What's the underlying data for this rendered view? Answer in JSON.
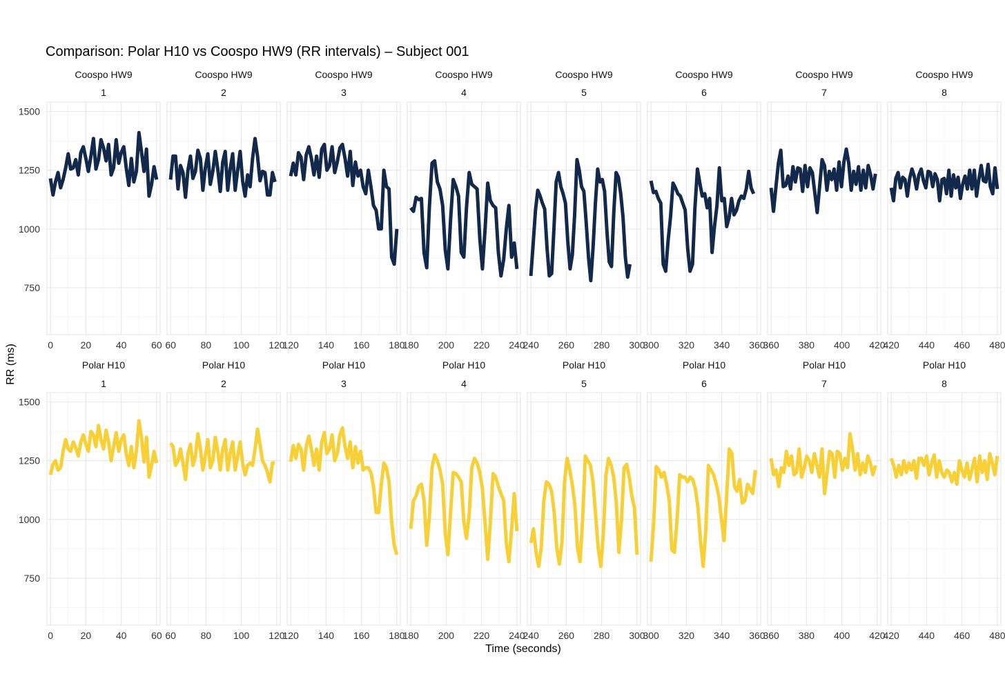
{
  "chart_data": {
    "type": "line",
    "title": "Comparison: Polar H10 vs Coospo HW9 (RR intervals) – Subject 001",
    "xlabel": "Time (seconds)",
    "ylabel": "RR (ms)",
    "ylim": [
      550,
      1540
    ],
    "yticks": [
      750,
      1000,
      1250,
      1500
    ],
    "grid": true,
    "legend": "none",
    "colors": {
      "Coospo HW9": "#13294b",
      "Polar H10": "#f7d038"
    },
    "rows": [
      {
        "device": "Coospo HW9",
        "panels": [
          {
            "label": "1",
            "xlim": [
              -2,
              62
            ],
            "xticks": [
              0,
              20,
              40,
              60
            ],
            "start": 0,
            "end": 60,
            "values": [
              1215,
              1145,
              1200,
              1240,
              1175,
              1210,
              1260,
              1320,
              1255,
              1260,
              1295,
              1230,
              1325,
              1350,
              1300,
              1245,
              1310,
              1385,
              1255,
              1295,
              1380,
              1345,
              1290,
              1360,
              1230,
              1260,
              1380,
              1280,
              1325,
              1350,
              1260,
              1185,
              1300,
              1200,
              1245,
              1410,
              1330,
              1245,
              1340,
              1140,
              1190,
              1265,
              1210
            ]
          },
          {
            "label": "2",
            "xlim": [
              58,
              122
            ],
            "xticks": [
              60,
              80,
              100,
              120
            ],
            "start": 60,
            "end": 119,
            "values": [
              1210,
              1310,
              1310,
              1170,
              1270,
              1240,
              1135,
              1250,
              1310,
              1215,
              1245,
              1335,
              1300,
              1165,
              1260,
              1320,
              1190,
              1245,
              1330,
              1255,
              1160,
              1285,
              1330,
              1165,
              1255,
              1320,
              1165,
              1250,
              1330,
              1205,
              1140,
              1230,
              1180,
              1300,
              1385,
              1310,
              1205,
              1245,
              1240,
              1145,
              1145,
              1240,
              1200
            ]
          },
          {
            "label": "3",
            "xlim": [
              118,
              182
            ],
            "xticks": [
              120,
              140,
              160,
              180
            ],
            "start": 120,
            "end": 180,
            "values": [
              1225,
              1280,
              1230,
              1325,
              1305,
              1210,
              1315,
              1350,
              1300,
              1230,
              1310,
              1220,
              1340,
              1360,
              1250,
              1270,
              1350,
              1240,
              1285,
              1345,
              1360,
              1300,
              1225,
              1330,
              1185,
              1285,
              1225,
              1250,
              1180,
              1150,
              1250,
              1180,
              1100,
              1080,
              1000,
              1000,
              1250,
              1180,
              1170,
              880,
              850,
              1000
            ]
          },
          {
            "label": "4",
            "xlim": [
              178,
              242
            ],
            "xticks": [
              180,
              200,
              220,
              240
            ],
            "start": 180,
            "end": 240,
            "values": [
              1090,
              1075,
              1135,
              1125,
              1130,
              900,
              835,
              1090,
              1280,
              1290,
              1200,
              1170,
              1100,
              910,
              830,
              1040,
              1210,
              1180,
              1140,
              900,
              880,
              1090,
              1240,
              1190,
              1180,
              1170,
              960,
              830,
              1000,
              1195,
              1120,
              1100,
              1090,
              900,
              800,
              870,
              1000,
              1100,
              880,
              940,
              830
            ]
          },
          {
            "label": "5",
            "xlim": [
              238,
              302
            ],
            "xticks": [
              240,
              260,
              280,
              300
            ],
            "start": 240,
            "end": 296,
            "values": [
              800,
              940,
              1080,
              1165,
              1140,
              1110,
              1085,
              920,
              800,
              810,
              1000,
              1200,
              1240,
              1180,
              1150,
              1110,
              950,
              830,
              890,
              1060,
              1295,
              1250,
              1180,
              1160,
              1030,
              880,
              780,
              920,
              1110,
              1255,
              1200,
              1210,
              1160,
              990,
              860,
              840,
              1075,
              1240,
              1220,
              1150,
              1050,
              880,
              795,
              850
            ]
          },
          {
            "label": "6",
            "xlim": [
              298,
              362
            ],
            "xticks": [
              300,
              320,
              340,
              360
            ],
            "start": 300,
            "end": 358,
            "values": [
              1205,
              1155,
              1160,
              1130,
              1110,
              850,
              820,
              950,
              1050,
              1195,
              1175,
              1150,
              1140,
              1110,
              1080,
              920,
              820,
              850,
              1090,
              1255,
              1195,
              1140,
              1150,
              1090,
              1130,
              900,
              1010,
              1100,
              1260,
              1120,
              1130,
              1010,
              1050,
              1130,
              1060,
              1080,
              1120,
              1140,
              1130,
              1170,
              1245,
              1175,
              1150
            ]
          },
          {
            "label": "7",
            "xlim": [
              358,
              422
            ],
            "xticks": [
              360,
              380,
              400,
              420
            ],
            "start": 360,
            "end": 419,
            "values": [
              1175,
              1075,
              1180,
              1280,
              1335,
              1180,
              1185,
              1225,
              1170,
              1265,
              1200,
              1260,
              1255,
              1160,
              1270,
              1180,
              1260,
              1240,
              1155,
              1070,
              1180,
              1295,
              1270,
              1165,
              1245,
              1210,
              1255,
              1165,
              1285,
              1180,
              1285,
              1340,
              1280,
              1165,
              1245,
              1190,
              1265,
              1165,
              1250,
              1175,
              1270,
              1230,
              1170,
              1235
            ]
          },
          {
            "label": "8",
            "xlim": [
              418,
              482
            ],
            "xticks": [
              420,
              440,
              460,
              480
            ],
            "start": 420,
            "end": 480,
            "values": [
              1175,
              1120,
              1215,
              1240,
              1175,
              1220,
              1210,
              1140,
              1215,
              1255,
              1225,
              1170,
              1230,
              1255,
              1205,
              1175,
              1245,
              1240,
              1180,
              1235,
              1210,
              1120,
              1210,
              1215,
              1150,
              1250,
              1140,
              1230,
              1175,
              1220,
              1130,
              1190,
              1225,
              1170,
              1250,
              1170,
              1250,
              1140,
              1210,
              1270,
              1205,
              1200,
              1275,
              1180,
              1150,
              1260,
              1170
            ]
          }
        ]
      },
      {
        "device": "Polar H10",
        "panels": [
          {
            "label": "1",
            "xlim": [
              -2,
              62
            ],
            "xticks": [
              0,
              20,
              40,
              60
            ],
            "start": 0,
            "end": 60,
            "values": [
              1190,
              1235,
              1250,
              1210,
              1220,
              1290,
              1340,
              1300,
              1290,
              1330,
              1305,
              1270,
              1330,
              1360,
              1320,
              1290,
              1375,
              1360,
              1310,
              1400,
              1340,
              1300,
              1380,
              1330,
              1250,
              1310,
              1370,
              1290,
              1340,
              1360,
              1280,
              1230,
              1310,
              1220,
              1290,
              1420,
              1350,
              1245,
              1350,
              1180,
              1230,
              1290,
              1240
            ]
          },
          {
            "label": "2",
            "xlim": [
              58,
              122
            ],
            "xticks": [
              60,
              80,
              100,
              120
            ],
            "start": 60,
            "end": 119,
            "values": [
              1325,
              1310,
              1230,
              1250,
              1300,
              1240,
              1170,
              1280,
              1320,
              1230,
              1270,
              1365,
              1300,
              1210,
              1270,
              1340,
              1220,
              1250,
              1350,
              1290,
              1210,
              1300,
              1340,
              1210,
              1280,
              1330,
              1210,
              1270,
              1330,
              1240,
              1190,
              1230,
              1240,
              1230,
              1300,
              1385,
              1320,
              1250,
              1230,
              1200,
              1160,
              1240,
              1240
            ]
          },
          {
            "label": "3",
            "xlim": [
              118,
              182
            ],
            "xticks": [
              120,
              140,
              160,
              180
            ],
            "start": 120,
            "end": 180,
            "values": [
              1245,
              1315,
              1260,
              1320,
              1300,
              1210,
              1310,
              1355,
              1300,
              1230,
              1300,
              1210,
              1330,
              1370,
              1280,
              1300,
              1360,
              1250,
              1280,
              1360,
              1390,
              1310,
              1260,
              1330,
              1220,
              1310,
              1240,
              1290,
              1210,
              1220,
              1220,
              1200,
              1140,
              1030,
              1030,
              1150,
              1240,
              1220,
              1160,
              990,
              890,
              850
            ]
          },
          {
            "label": "4",
            "xlim": [
              178,
              242
            ],
            "xticks": [
              180,
              200,
              220,
              240
            ],
            "start": 180,
            "end": 240,
            "values": [
              960,
              1080,
              1100,
              1140,
              1150,
              1080,
              890,
              1010,
              1220,
              1275,
              1250,
              1210,
              1150,
              940,
              850,
              1030,
              1200,
              1195,
              1180,
              1160,
              990,
              920,
              1020,
              1220,
              1260,
              1240,
              1200,
              1130,
              980,
              830,
              990,
              1195,
              1180,
              1140,
              1110,
              1080,
              900,
              820,
              960,
              1110,
              950
            ]
          },
          {
            "label": "5",
            "xlim": [
              238,
              302
            ],
            "xticks": [
              240,
              260,
              280,
              300
            ],
            "start": 240,
            "end": 300,
            "values": [
              900,
              960,
              860,
              800,
              880,
              1080,
              1160,
              1150,
              1120,
              1030,
              880,
              810,
              900,
              1160,
              1260,
              1210,
              1150,
              1060,
              880,
              820,
              1000,
              1270,
              1250,
              1230,
              1160,
              1020,
              880,
              800,
              940,
              1190,
              1260,
              1230,
              1180,
              1070,
              860,
              1000,
              1220,
              1235,
              1180,
              1100,
              1050,
              850
            ]
          },
          {
            "label": "6",
            "xlim": [
              298,
              362
            ],
            "xticks": [
              300,
              320,
              340,
              360
            ],
            "start": 300,
            "end": 359,
            "values": [
              820,
              980,
              1225,
              1210,
              1180,
              1200,
              1150,
              1080,
              870,
              860,
              1000,
              1190,
              1180,
              1180,
              1160,
              1180,
              1170,
              1130,
              1050,
              910,
              800,
              950,
              1230,
              1210,
              1190,
              1150,
              1100,
              1000,
              910,
              1100,
              1300,
              1280,
              1140,
              1120,
              1170,
              1070,
              1080,
              1150,
              1130,
              1110,
              1210
            ]
          },
          {
            "label": "7",
            "xlim": [
              358,
              422
            ],
            "xticks": [
              360,
              380,
              400,
              420
            ],
            "start": 360,
            "end": 419,
            "values": [
              1260,
              1190,
              1210,
              1140,
              1220,
              1200,
              1290,
              1230,
              1270,
              1190,
              1200,
              1300,
              1180,
              1220,
              1270,
              1250,
              1200,
              1280,
              1230,
              1180,
              1300,
              1110,
              1200,
              1290,
              1280,
              1180,
              1290,
              1280,
              1210,
              1260,
              1220,
              1365,
              1300,
              1210,
              1280,
              1190,
              1240,
              1200,
              1270,
              1240,
              1190,
              1230
            ]
          },
          {
            "label": "8",
            "xlim": [
              418,
              482
            ],
            "xticks": [
              420,
              440,
              460,
              480
            ],
            "start": 420,
            "end": 480,
            "values": [
              1260,
              1230,
              1180,
              1230,
              1190,
              1250,
              1200,
              1240,
              1210,
              1250,
              1175,
              1260,
              1260,
              1230,
              1270,
              1190,
              1240,
              1275,
              1180,
              1250,
              1200,
              1180,
              1210,
              1200,
              1160,
              1200,
              1150,
              1250,
              1210,
              1180,
              1240,
              1170,
              1215,
              1260,
              1160,
              1270,
              1200,
              1250,
              1170,
              1280,
              1240,
              1190,
              1270
            ]
          }
        ]
      }
    ]
  }
}
